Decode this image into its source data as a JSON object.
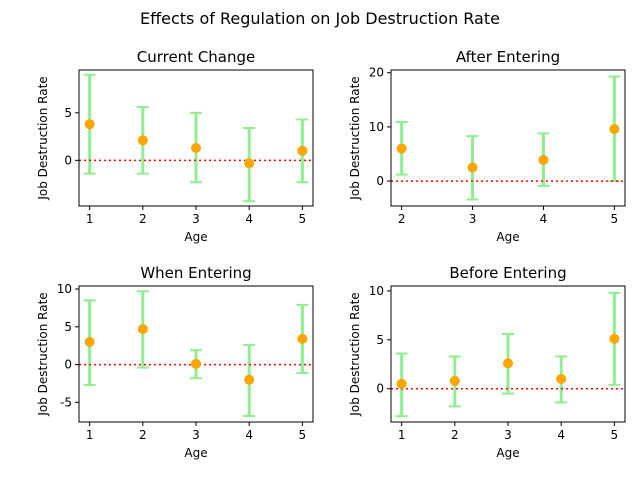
{
  "figure": {
    "suptitle": "Effects of Regulation on Job Destruction Rate"
  },
  "colors": {
    "errorbar": "#90ee90",
    "marker": "#ffa500",
    "zero_line": "#ff0000",
    "axes": "#000000"
  },
  "chart_data": [
    {
      "type": "scatter",
      "title": "Current Change",
      "xlabel": "Age",
      "ylabel": "Job Destruction Rate",
      "x": [
        1,
        2,
        3,
        4,
        5
      ],
      "y": [
        3.8,
        2.1,
        1.3,
        -0.3,
        1.0
      ],
      "yerr_low": [
        -1.4,
        -1.4,
        -2.3,
        -4.3,
        -2.3
      ],
      "yerr_high": [
        9.0,
        5.6,
        5.0,
        3.4,
        4.3
      ],
      "xlim": [
        0.8,
        5.2
      ],
      "ylim": [
        -4.8,
        9.5
      ],
      "xticks": [
        1,
        2,
        3,
        4,
        5
      ],
      "yticks": [
        0,
        5
      ],
      "reference_line": 0,
      "grid": false
    },
    {
      "type": "scatter",
      "title": "After Entering",
      "xlabel": "Age",
      "ylabel": "Job Destruction Rate",
      "x": [
        2,
        3,
        4,
        5
      ],
      "y": [
        6.0,
        2.5,
        3.9,
        9.6
      ],
      "yerr_low": [
        1.2,
        -3.4,
        -0.9,
        0.0
      ],
      "yerr_high": [
        10.9,
        8.3,
        8.8,
        19.3
      ],
      "xlim": [
        1.85,
        5.15
      ],
      "ylim": [
        -4.6,
        20.5
      ],
      "xticks": [
        2,
        3,
        4,
        5
      ],
      "yticks": [
        0,
        10,
        20
      ],
      "reference_line": 0,
      "grid": false
    },
    {
      "type": "scatter",
      "title": "When Entering",
      "xlabel": "Age",
      "ylabel": "Job Destruction Rate",
      "x": [
        1,
        2,
        3,
        4,
        5
      ],
      "y": [
        3.0,
        4.7,
        0.1,
        -2.0,
        3.4
      ],
      "yerr_low": [
        -2.7,
        -0.4,
        -1.8,
        -6.8,
        -1.1
      ],
      "yerr_high": [
        8.5,
        9.7,
        1.9,
        2.6,
        7.9
      ],
      "xlim": [
        0.8,
        5.2
      ],
      "ylim": [
        -7.6,
        10.4
      ],
      "xticks": [
        1,
        2,
        3,
        4,
        5
      ],
      "yticks": [
        -5,
        0,
        5,
        10
      ],
      "reference_line": 0,
      "grid": false
    },
    {
      "type": "scatter",
      "title": "Before Entering",
      "xlabel": "Age",
      "ylabel": "Job Destruction Rate",
      "x": [
        1,
        2,
        3,
        4,
        5
      ],
      "y": [
        0.5,
        0.8,
        2.6,
        1.0,
        5.1
      ],
      "yerr_low": [
        -2.8,
        -1.8,
        -0.5,
        -1.4,
        0.4
      ],
      "yerr_high": [
        3.6,
        3.3,
        5.6,
        3.3,
        9.8
      ],
      "xlim": [
        0.8,
        5.2
      ],
      "ylim": [
        -3.4,
        10.5
      ],
      "xticks": [
        1,
        2,
        3,
        4,
        5
      ],
      "yticks": [
        0,
        5,
        10
      ],
      "reference_line": 0,
      "grid": false
    }
  ]
}
